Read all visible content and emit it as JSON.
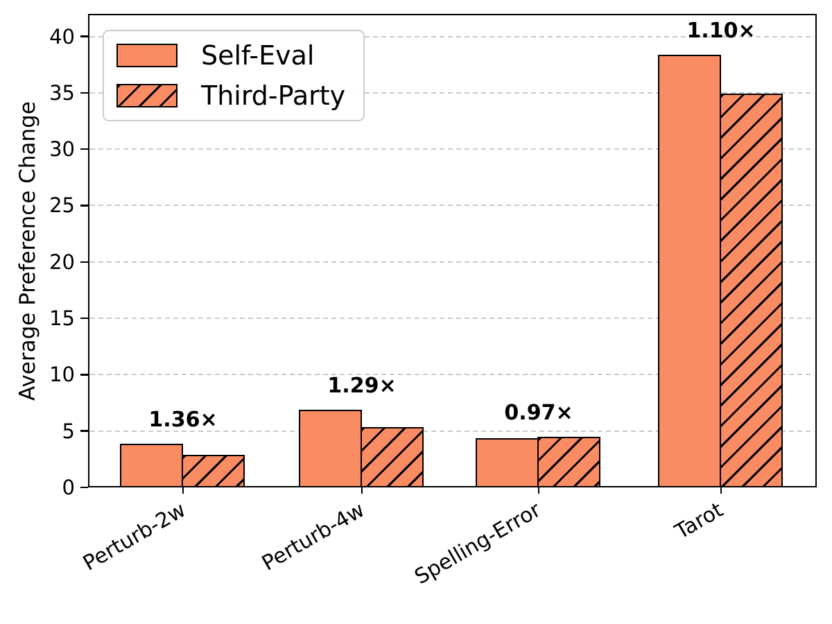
{
  "chart_data": {
    "type": "bar",
    "title": "",
    "xlabel": "",
    "ylabel": "Average Preference Change",
    "categories": [
      "Perturb-2w",
      "Perturb-4w",
      "Spelling-Error",
      "Tarot"
    ],
    "series": [
      {
        "name": "Self-Eval",
        "style": "solid",
        "values": [
          3.9,
          6.9,
          4.35,
          38.4
        ]
      },
      {
        "name": "Third-Party",
        "style": "hatched",
        "values": [
          2.87,
          5.35,
          4.5,
          34.9
        ]
      }
    ],
    "ratio_annotations": [
      "1.36×",
      "1.29×",
      "0.97×",
      "1.10×"
    ],
    "ylim": [
      0,
      42
    ],
    "yticks": [
      0,
      5,
      10,
      15,
      20,
      25,
      30,
      35,
      40
    ],
    "grid": "horizontal-dashed",
    "legend_position": "upper-left",
    "colors": {
      "bar_fill": "#FA8C64",
      "bar_edge": "#000000",
      "gridline": "#c9c9c9",
      "legend_border": "#cccccc",
      "text": "#000000"
    }
  }
}
